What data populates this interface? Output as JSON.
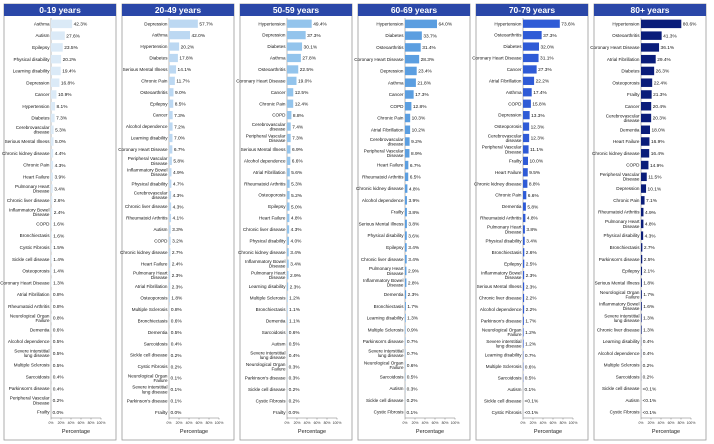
{
  "chart_data": [
    {
      "type": "bar",
      "orientation": "horizontal",
      "title": "0-19 years",
      "xlabel": "Percentage",
      "xlim": [
        0,
        100
      ],
      "color": "#dbeaf7",
      "x_ticks": [
        "0%",
        "20%",
        "40%",
        "60%",
        "80%",
        "100%"
      ],
      "categories": [
        "Asthma",
        "Autism",
        "Epilepsy",
        "Physical disability",
        "Learning disability",
        "Depression",
        "Cancer",
        "Hypertension",
        "Diabetes",
        "Cerebrovascular disease",
        "Serious Mental Illness",
        "Chronic kidney disease",
        "Chronic Pain",
        "Heart Failure",
        "Pulmonary Heart Disease",
        "Chronic liver disease",
        "Inflammatory Bowel Disease",
        "COPD",
        "Bronchiectasis",
        "Cystic Fibrosis",
        "Sickle cell disease",
        "Osteoporosis",
        "Coronary Heart Disease",
        "Atrial Fibrillation",
        "Rheumatoid Arthritis",
        "Neurological Organ Failure",
        "Dementia",
        "Alcohol dependence",
        "Severe interstitial lung disease",
        "Multiple Sclerosis",
        "Sarcoidosis",
        "Parkinson's disease",
        "Peripheral Vascular Disease",
        "Frailty"
      ],
      "values": [
        42.3,
        27.6,
        23.5,
        20.2,
        19.4,
        16.8,
        10.9,
        8.1,
        7.3,
        5.3,
        5.0,
        4.4,
        4.3,
        3.9,
        3.4,
        2.6,
        2.4,
        1.6,
        1.6,
        1.5,
        1.4,
        1.4,
        1.3,
        0.8,
        0.8,
        0.8,
        0.6,
        0.5,
        0.5,
        0.5,
        0.4,
        0.4,
        0.2,
        0.0
      ],
      "value_labels": [
        "42.3%",
        "27.6%",
        "23.5%",
        "20.2%",
        "19.4%",
        "16.8%",
        "10.9%",
        "8.1%",
        "7.3%",
        "5.3%",
        "5.0%",
        "4.4%",
        "4.3%",
        "3.9%",
        "3.4%",
        "2.6%",
        "2.4%",
        "1.6%",
        "1.6%",
        "1.5%",
        "1.4%",
        "1.4%",
        "1.3%",
        "0.8%",
        "0.8%",
        "0.8%",
        "0.6%",
        "0.5%",
        "0.5%",
        "0.5%",
        "0.4%",
        "0.4%",
        "0.2%",
        "0.0%"
      ]
    },
    {
      "type": "bar",
      "orientation": "horizontal",
      "title": "20-49 years",
      "xlabel": "Percentage",
      "xlim": [
        0,
        100
      ],
      "color": "#bcd8f2",
      "x_ticks": [
        "0%",
        "20%",
        "40%",
        "60%",
        "80%",
        "100%"
      ],
      "categories": [
        "Depression",
        "Asthma",
        "Hypertension",
        "Diabetes",
        "Serious Mental Illness",
        "Chronic Pain",
        "Osteoarthritis",
        "Epilepsy",
        "Cancer",
        "Alcohol dependence",
        "Learning disability",
        "Coronary Heart Disease",
        "Peripheral Vascular Disease",
        "Inflammatory Bowel Disease",
        "Physical disability",
        "Cerebrovascular disease",
        "Chronic liver disease",
        "Rheumatoid Arthritis",
        "Autism",
        "COPD",
        "Chronic kidney disease",
        "Heart Failure",
        "Pulmonary Heart Disease",
        "Atrial Fibrillation",
        "Osteoporosis",
        "Multiple Sclerosis",
        "Bronchiectasis",
        "Dementia",
        "Sarcoidosis",
        "Sickle cell disease",
        "Cystic Fibrosis",
        "Neurological Organ Failure",
        "Severe interstitial lung disease",
        "Parkinson's disease",
        "Frailty"
      ],
      "values": [
        57.7,
        42.0,
        20.2,
        17.8,
        14.1,
        11.7,
        9.0,
        8.5,
        7.3,
        7.2,
        7.0,
        6.7,
        5.8,
        4.9,
        4.7,
        4.3,
        4.3,
        4.1,
        3.3,
        3.2,
        2.7,
        2.4,
        2.3,
        2.3,
        1.8,
        0.8,
        0.6,
        0.5,
        0.4,
        0.2,
        0.2,
        0.1,
        0.1,
        0.1,
        0.0
      ],
      "value_labels": [
        "57.7%",
        "42.0%",
        "20.2%",
        "17.8%",
        "14.1%",
        "11.7%",
        "9.0%",
        "8.5%",
        "7.3%",
        "7.2%",
        "7.0%",
        "6.7%",
        "5.8%",
        "4.9%",
        "4.7%",
        "4.3%",
        "4.3%",
        "4.1%",
        "3.3%",
        "3.2%",
        "2.7%",
        "2.4%",
        "2.3%",
        "2.3%",
        "1.8%",
        "0.8%",
        "0.6%",
        "0.5%",
        "0.4%",
        "0.2%",
        "0.2%",
        "0.1%",
        "0.1%",
        "0.1%",
        "0.0%"
      ]
    },
    {
      "type": "bar",
      "orientation": "horizontal",
      "title": "50-59 years",
      "xlabel": "Percentage",
      "xlim": [
        0,
        100
      ],
      "color": "#93c4ec",
      "x_ticks": [
        "0%",
        "20%",
        "40%",
        "60%",
        "80%",
        "100%"
      ],
      "categories": [
        "Hypertension",
        "Depression",
        "Diabetes",
        "Asthma",
        "Osteoarthritis",
        "Coronary Heart Disease",
        "Cancer",
        "Chronic Pain",
        "COPD",
        "Cerebrovascular disease",
        "Peripheral Vascular Disease",
        "Serious Mental Illness",
        "Alcohol dependence",
        "Atrial Fibrillation",
        "Rheumatoid Arthritis",
        "Osteoporosis",
        "Epilepsy",
        "Heart Failure",
        "Chronic liver disease",
        "Physical disability",
        "Chronic kidney disease",
        "Inflammatory Bowel Disease",
        "Pulmonary Heart Disease",
        "Learning disability",
        "Multiple Sclerosis",
        "Bronchiectasis",
        "Dementia",
        "Sarcoidosis",
        "Autism",
        "Severe interstitial lung disease",
        "Neurological Organ Failure",
        "Parkinson's disease",
        "Sickle cell disease",
        "Cystic Fibrosis",
        "Frailty"
      ],
      "values": [
        49.4,
        37.3,
        30.1,
        27.8,
        22.5,
        19.0,
        12.5,
        12.4,
        8.8,
        7.4,
        7.3,
        6.9,
        6.6,
        5.6,
        5.3,
        5.2,
        5.0,
        4.8,
        4.3,
        4.0,
        3.4,
        3.4,
        2.9,
        2.3,
        1.2,
        1.1,
        1.1,
        0.6,
        0.5,
        0.4,
        0.3,
        0.3,
        0.2,
        0.2,
        0.0
      ],
      "value_labels": [
        "49.4%",
        "37.3%",
        "30.1%",
        "27.8%",
        "22.5%",
        "19.0%",
        "12.5%",
        "12.4%",
        "8.8%",
        "7.4%",
        "7.3%",
        "6.9%",
        "6.6%",
        "5.6%",
        "5.3%",
        "5.2%",
        "5.0%",
        "4.8%",
        "4.3%",
        "4.0%",
        "3.4%",
        "3.4%",
        "2.9%",
        "2.3%",
        "1.2%",
        "1.1%",
        "1.1%",
        "0.6%",
        "0.5%",
        "0.4%",
        "0.3%",
        "0.3%",
        "0.2%",
        "0.2%",
        "0.0%"
      ]
    },
    {
      "type": "bar",
      "orientation": "horizontal",
      "title": "60-69 years",
      "xlabel": "Percentage",
      "xlim": [
        0,
        100
      ],
      "color": "#5b9ee0",
      "x_ticks": [
        "0%",
        "20%",
        "40%",
        "60%",
        "80%",
        "100%"
      ],
      "categories": [
        "Hypertension",
        "Diabetes",
        "Osteoarthritis",
        "Coronary Heart Disease",
        "Depression",
        "Asthma",
        "Cancer",
        "COPD",
        "Chronic Pain",
        "Atrial Fibrillation",
        "Cerebrovascular disease",
        "Peripheral Vascular Disease",
        "Heart Failure",
        "Rheumatoid Arthritis",
        "Chronic kidney disease",
        "Alcohol dependence",
        "Frailty",
        "Serious Mental Illness",
        "Physical disability",
        "Epilepsy",
        "Chronic liver disease",
        "Pulmonary Heart Disease",
        "Inflammatory Bowel Disease",
        "Dementia",
        "Bronchiectasis",
        "Learning disability",
        "Multiple Sclerosis",
        "Parkinson's disease",
        "Severe interstitial lung disease",
        "Neurological Organ Failure",
        "Sarcoidosis",
        "Autism",
        "Sickle cell disease",
        "Cystic Fibrosis"
      ],
      "values": [
        64.0,
        33.7,
        31.4,
        28.3,
        23.4,
        21.8,
        17.3,
        12.8,
        10.3,
        10.2,
        9.2,
        8.9,
        6.7,
        6.5,
        4.8,
        3.9,
        3.8,
        3.8,
        3.6,
        3.4,
        3.4,
        2.9,
        2.8,
        2.3,
        1.7,
        1.3,
        0.9,
        0.7,
        0.7,
        0.6,
        0.5,
        0.3,
        0.2,
        0.1
      ],
      "value_labels": [
        "64.0%",
        "33.7%",
        "31.4%",
        "28.3%",
        "23.4%",
        "21.8%",
        "17.3%",
        "12.8%",
        "10.3%",
        "10.2%",
        "9.2%",
        "8.9%",
        "6.7%",
        "6.5%",
        "4.8%",
        "3.9%",
        "3.8%",
        "3.8%",
        "3.6%",
        "3.4%",
        "3.4%",
        "2.9%",
        "2.8%",
        "2.3%",
        "1.7%",
        "1.3%",
        "0.9%",
        "0.7%",
        "0.7%",
        "0.6%",
        "0.5%",
        "0.3%",
        "0.2%",
        "0.1%"
      ]
    },
    {
      "type": "bar",
      "orientation": "horizontal",
      "title": "70-79 years",
      "xlabel": "Percentage",
      "xlim": [
        0,
        100
      ],
      "color": "#2f5bd6",
      "x_ticks": [
        "0%",
        "20%",
        "40%",
        "60%",
        "80%",
        "100%"
      ],
      "categories": [
        "Hypertension",
        "Osteoarthritis",
        "Diabetes",
        "Coronary Heart Disease",
        "Cancer",
        "Atrial Fibrillation",
        "Asthma",
        "COPD",
        "Depression",
        "Osteoporosis",
        "Cerebrovascular disease",
        "Peripheral Vascular Disease",
        "Frailty",
        "Heart Failure",
        "Chronic kidney disease",
        "Chronic Pain",
        "Dementia",
        "Rheumatoid Arthritis",
        "Pulmonary Heart Disease",
        "Physical disability",
        "Bronchiectasis",
        "Epilepsy",
        "Inflammatory Bowel Disease",
        "Serious Mental Illness",
        "Chronic liver disease",
        "Alcohol dependence",
        "Parkinson's disease",
        "Neurological Organ Failure",
        "Severe interstitial lung disease",
        "Learning disability",
        "Multiple Sclerosis",
        "Sarcoidosis",
        "Autism",
        "Sickle cell disease",
        "Cystic Fibrosis"
      ],
      "values": [
        73.6,
        37.3,
        32.0,
        31.1,
        27.3,
        22.2,
        17.4,
        15.8,
        13.3,
        12.3,
        12.3,
        11.1,
        10.0,
        9.5,
        8.8,
        6.6,
        5.8,
        4.8,
        3.8,
        3.4,
        2.6,
        2.5,
        2.3,
        2.3,
        2.2,
        2.2,
        1.7,
        1.2,
        1.2,
        0.7,
        0.6,
        0.5,
        0.1,
        0.05,
        0.05
      ],
      "value_labels": [
        "73.6%",
        "37.3%",
        "32.0%",
        "31.1%",
        "27.3%",
        "22.2%",
        "17.4%",
        "15.8%",
        "13.3%",
        "12.3%",
        "12.3%",
        "11.1%",
        "10.0%",
        "9.5%",
        "8.8%",
        "6.6%",
        "5.8%",
        "4.8%",
        "3.8%",
        "3.4%",
        "2.6%",
        "2.5%",
        "2.3%",
        "2.3%",
        "2.2%",
        "2.2%",
        "1.7%",
        "1.2%",
        "1.2%",
        "0.7%",
        "0.6%",
        "0.5%",
        "0.1%",
        "<0.1%",
        "<0.1%"
      ]
    },
    {
      "type": "bar",
      "orientation": "horizontal",
      "title": "80+ years",
      "xlabel": "Percentage",
      "xlim": [
        0,
        100
      ],
      "color": "#0a1d7a",
      "x_ticks": [
        "0%",
        "20%",
        "40%",
        "60%",
        "80%",
        "100%"
      ],
      "categories": [
        "Hypertension",
        "Osteoarthritis",
        "Coronary Heart Disease",
        "Atrial Fibrillation",
        "Diabetes",
        "Osteoporosis",
        "Frailty",
        "Cancer",
        "Cerebrovascular disease",
        "Dementia",
        "Heart Failure",
        "Chronic kidney disease",
        "COPD",
        "Peripheral Vascular Disease",
        "Depression",
        "Chronic Pain",
        "Rheumatoid Arthritis",
        "Pulmonary Heart Disease",
        "Physical disability",
        "Bronchiectasis",
        "Parkinson's disease",
        "Epilepsy",
        "Serious Mental Illness",
        "Neurological Organ Failure",
        "Inflammatory Bowel Disease",
        "Severe interstitial lung disease",
        "Chronic liver disease",
        "Learning disability",
        "Alcohol dependence",
        "Multiple Sclerosis",
        "Sarcoidosis",
        "Sickle cell disease",
        "Autism",
        "Cystic Fibrosis"
      ],
      "values": [
        80.6,
        41.3,
        36.1,
        29.4,
        26.3,
        22.4,
        21.3,
        20.4,
        20.3,
        18.0,
        16.9,
        16.4,
        14.9,
        11.5,
        10.1,
        7.1,
        4.9,
        4.8,
        4.3,
        2.7,
        2.5,
        2.1,
        1.8,
        1.7,
        1.6,
        1.3,
        1.3,
        0.4,
        0.4,
        0.2,
        0.2,
        0.05,
        0.05,
        0.05
      ],
      "value_labels": [
        "80.6%",
        "41.3%",
        "36.1%",
        "29.4%",
        "26.3%",
        "22.4%",
        "21.3%",
        "20.4%",
        "20.3%",
        "18.0%",
        "16.9%",
        "16.4%",
        "14.9%",
        "11.5%",
        "10.1%",
        "7.1%",
        "4.9%",
        "4.8%",
        "4.3%",
        "2.7%",
        "2.5%",
        "2.1%",
        "1.8%",
        "1.7%",
        "1.6%",
        "1.3%",
        "1.3%",
        "0.4%",
        "0.4%",
        "0.2%",
        "0.2%",
        "<0.1%",
        "<0.1%",
        "<0.1%"
      ]
    }
  ]
}
